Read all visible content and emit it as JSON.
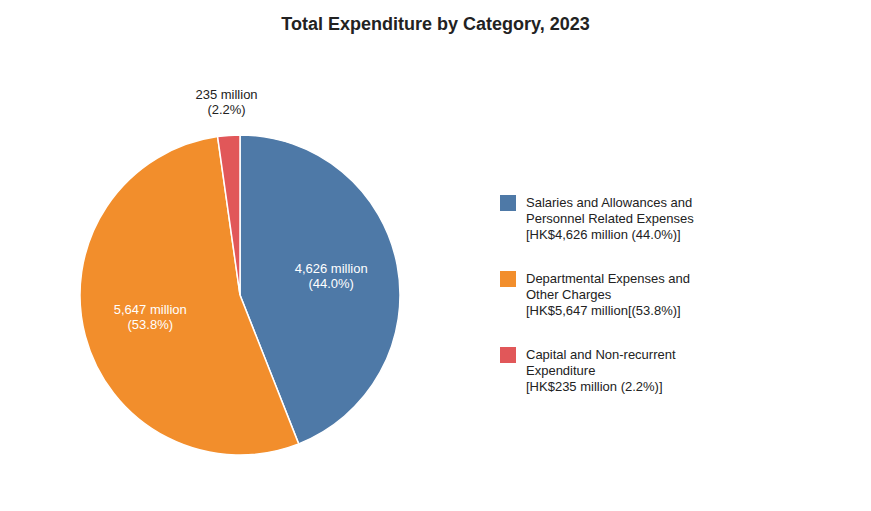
{
  "chart_data": {
    "type": "pie",
    "title": "Total Expenditure by Category, 2023",
    "categories": [
      "Salaries and Allowances and\nPersonnel Related Expenses\n[HK$4,626 million (44.0%)]",
      "Departmental Expenses and\nOther Charges\n[HK$5,647 million[(53.8%)]",
      "Capital and Non-recurrent\nExpenditure\n[HK$235 million (2.2%)]"
    ],
    "values": [
      4626,
      5647,
      235
    ],
    "value_labels": [
      "4,626 million\n(44.0%)",
      "5,647 million\n(53.8%)",
      "235 million\n(2.2%)"
    ],
    "data_labels": true,
    "legend": "right"
  }
}
